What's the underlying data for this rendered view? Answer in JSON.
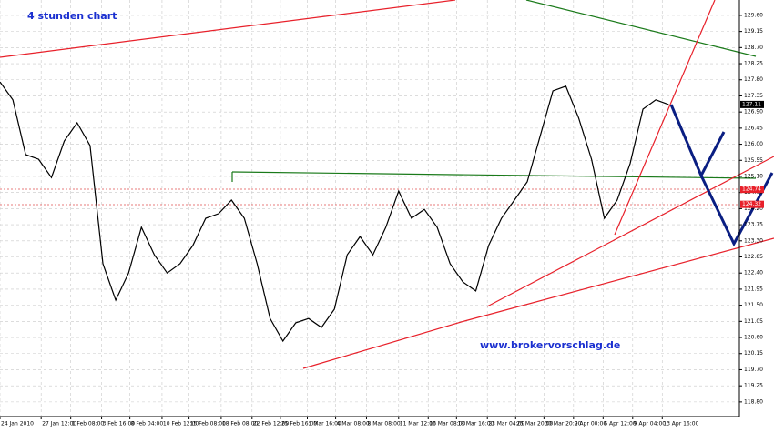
{
  "chart_data": {
    "type": "line",
    "title": "4 stunden chart",
    "annotation": "www.brokervorschlag.de",
    "x": [
      0,
      1,
      2,
      3,
      4,
      5,
      6,
      7,
      8,
      9,
      10,
      11,
      12,
      13,
      14,
      15,
      16,
      17,
      18,
      19,
      20,
      21,
      22,
      23,
      24,
      25,
      26,
      27,
      28,
      29,
      30,
      31,
      32,
      33,
      34,
      35,
      36,
      37,
      38,
      39,
      40,
      41,
      42,
      43,
      44,
      45,
      46,
      47,
      48,
      49,
      50,
      51,
      52
    ],
    "series": [
      {
        "color": "#000000",
        "values": [
          127.74,
          127.24,
          125.71,
          125.58,
          125.07,
          126.09,
          126.6,
          125.96,
          122.66,
          121.64,
          122.4,
          123.68,
          122.91,
          122.4,
          122.66,
          123.17,
          123.93,
          124.06,
          124.44,
          123.93,
          122.66,
          121.13,
          120.5,
          121.01,
          121.13,
          120.88,
          121.39,
          122.91,
          123.42,
          122.91,
          123.68,
          124.69,
          123.93,
          124.18,
          123.68,
          122.66,
          122.15,
          121.9,
          123.17,
          123.93,
          124.44,
          124.95,
          126.22,
          127.49,
          127.62,
          126.73,
          125.58,
          123.93,
          124.44,
          125.46,
          126.98,
          127.24,
          127.11
        ]
      }
    ],
    "xlim": [
      0,
      57.5
    ],
    "xticks": [
      {
        "value": 0,
        "label": "24 Jan 2010"
      },
      {
        "value": 3.2,
        "label": "27 Jan 12:00"
      },
      {
        "value": 5.5,
        "label": "1 Feb 08:00"
      },
      {
        "value": 7.9,
        "label": "3 Feb 16:00"
      },
      {
        "value": 10.1,
        "label": "8 Feb 04:00"
      },
      {
        "value": 12.6,
        "label": "10 Feb 12:00"
      },
      {
        "value": 14.7,
        "label": "15 Feb 08:00"
      },
      {
        "value": 17.2,
        "label": "18 Feb 08:00"
      },
      {
        "value": 19.6,
        "label": "22 Feb 12:00"
      },
      {
        "value": 21.8,
        "label": "25 Feb 16:00"
      },
      {
        "value": 23.9,
        "label": "1 Mar 16:00"
      },
      {
        "value": 26.1,
        "label": "4 Mar 08:00"
      },
      {
        "value": 28.5,
        "label": "8 Mar 08:00"
      },
      {
        "value": 31.0,
        "label": "11 Mar 12:00"
      },
      {
        "value": 33.3,
        "label": "16 Mar 08:00"
      },
      {
        "value": 35.5,
        "label": "18 Mar 16:00"
      },
      {
        "value": 37.9,
        "label": "23 Mar 04:00"
      },
      {
        "value": 40.1,
        "label": "25 Mar 20:00"
      },
      {
        "value": 42.3,
        "label": "30 Mar 20:00"
      },
      {
        "value": 44.6,
        "label": "2 Apr 00:00"
      },
      {
        "value": 46.9,
        "label": "6 Apr 12:00"
      },
      {
        "value": 49.2,
        "label": "9 Apr 04:00"
      },
      {
        "value": 51.5,
        "label": "13 Apr 16:00"
      }
    ],
    "ylim": [
      118.39,
      130.03
    ],
    "yticks": [
      {
        "value": 129.6,
        "label": "129.60"
      },
      129.15,
      {
        "value": 128.7,
        "label": "128.70"
      },
      128.25,
      {
        "value": 127.8,
        "label": "127.80"
      },
      127.35,
      {
        "value": 126.9,
        "label": "126.90"
      },
      126.45,
      {
        "value": 126.0,
        "label": "126.00"
      },
      125.55,
      {
        "value": 125.1,
        "label": "125.10"
      },
      124.65,
      {
        "value": 124.2,
        "label": "124.20"
      },
      123.75,
      {
        "value": 123.3,
        "label": "123.30"
      },
      122.85,
      {
        "value": 122.4,
        "label": "122.40"
      },
      121.95,
      {
        "value": 121.5,
        "label": "121.50"
      },
      121.05,
      {
        "value": 120.6,
        "label": "120.60"
      },
      120.15,
      {
        "value": 119.7,
        "label": "119.70"
      },
      119.25,
      {
        "value": 118.8,
        "label": "118.80"
      }
    ],
    "last_price": 127.11,
    "price_lines": [
      124.74,
      124.32
    ],
    "grid": true
  }
}
